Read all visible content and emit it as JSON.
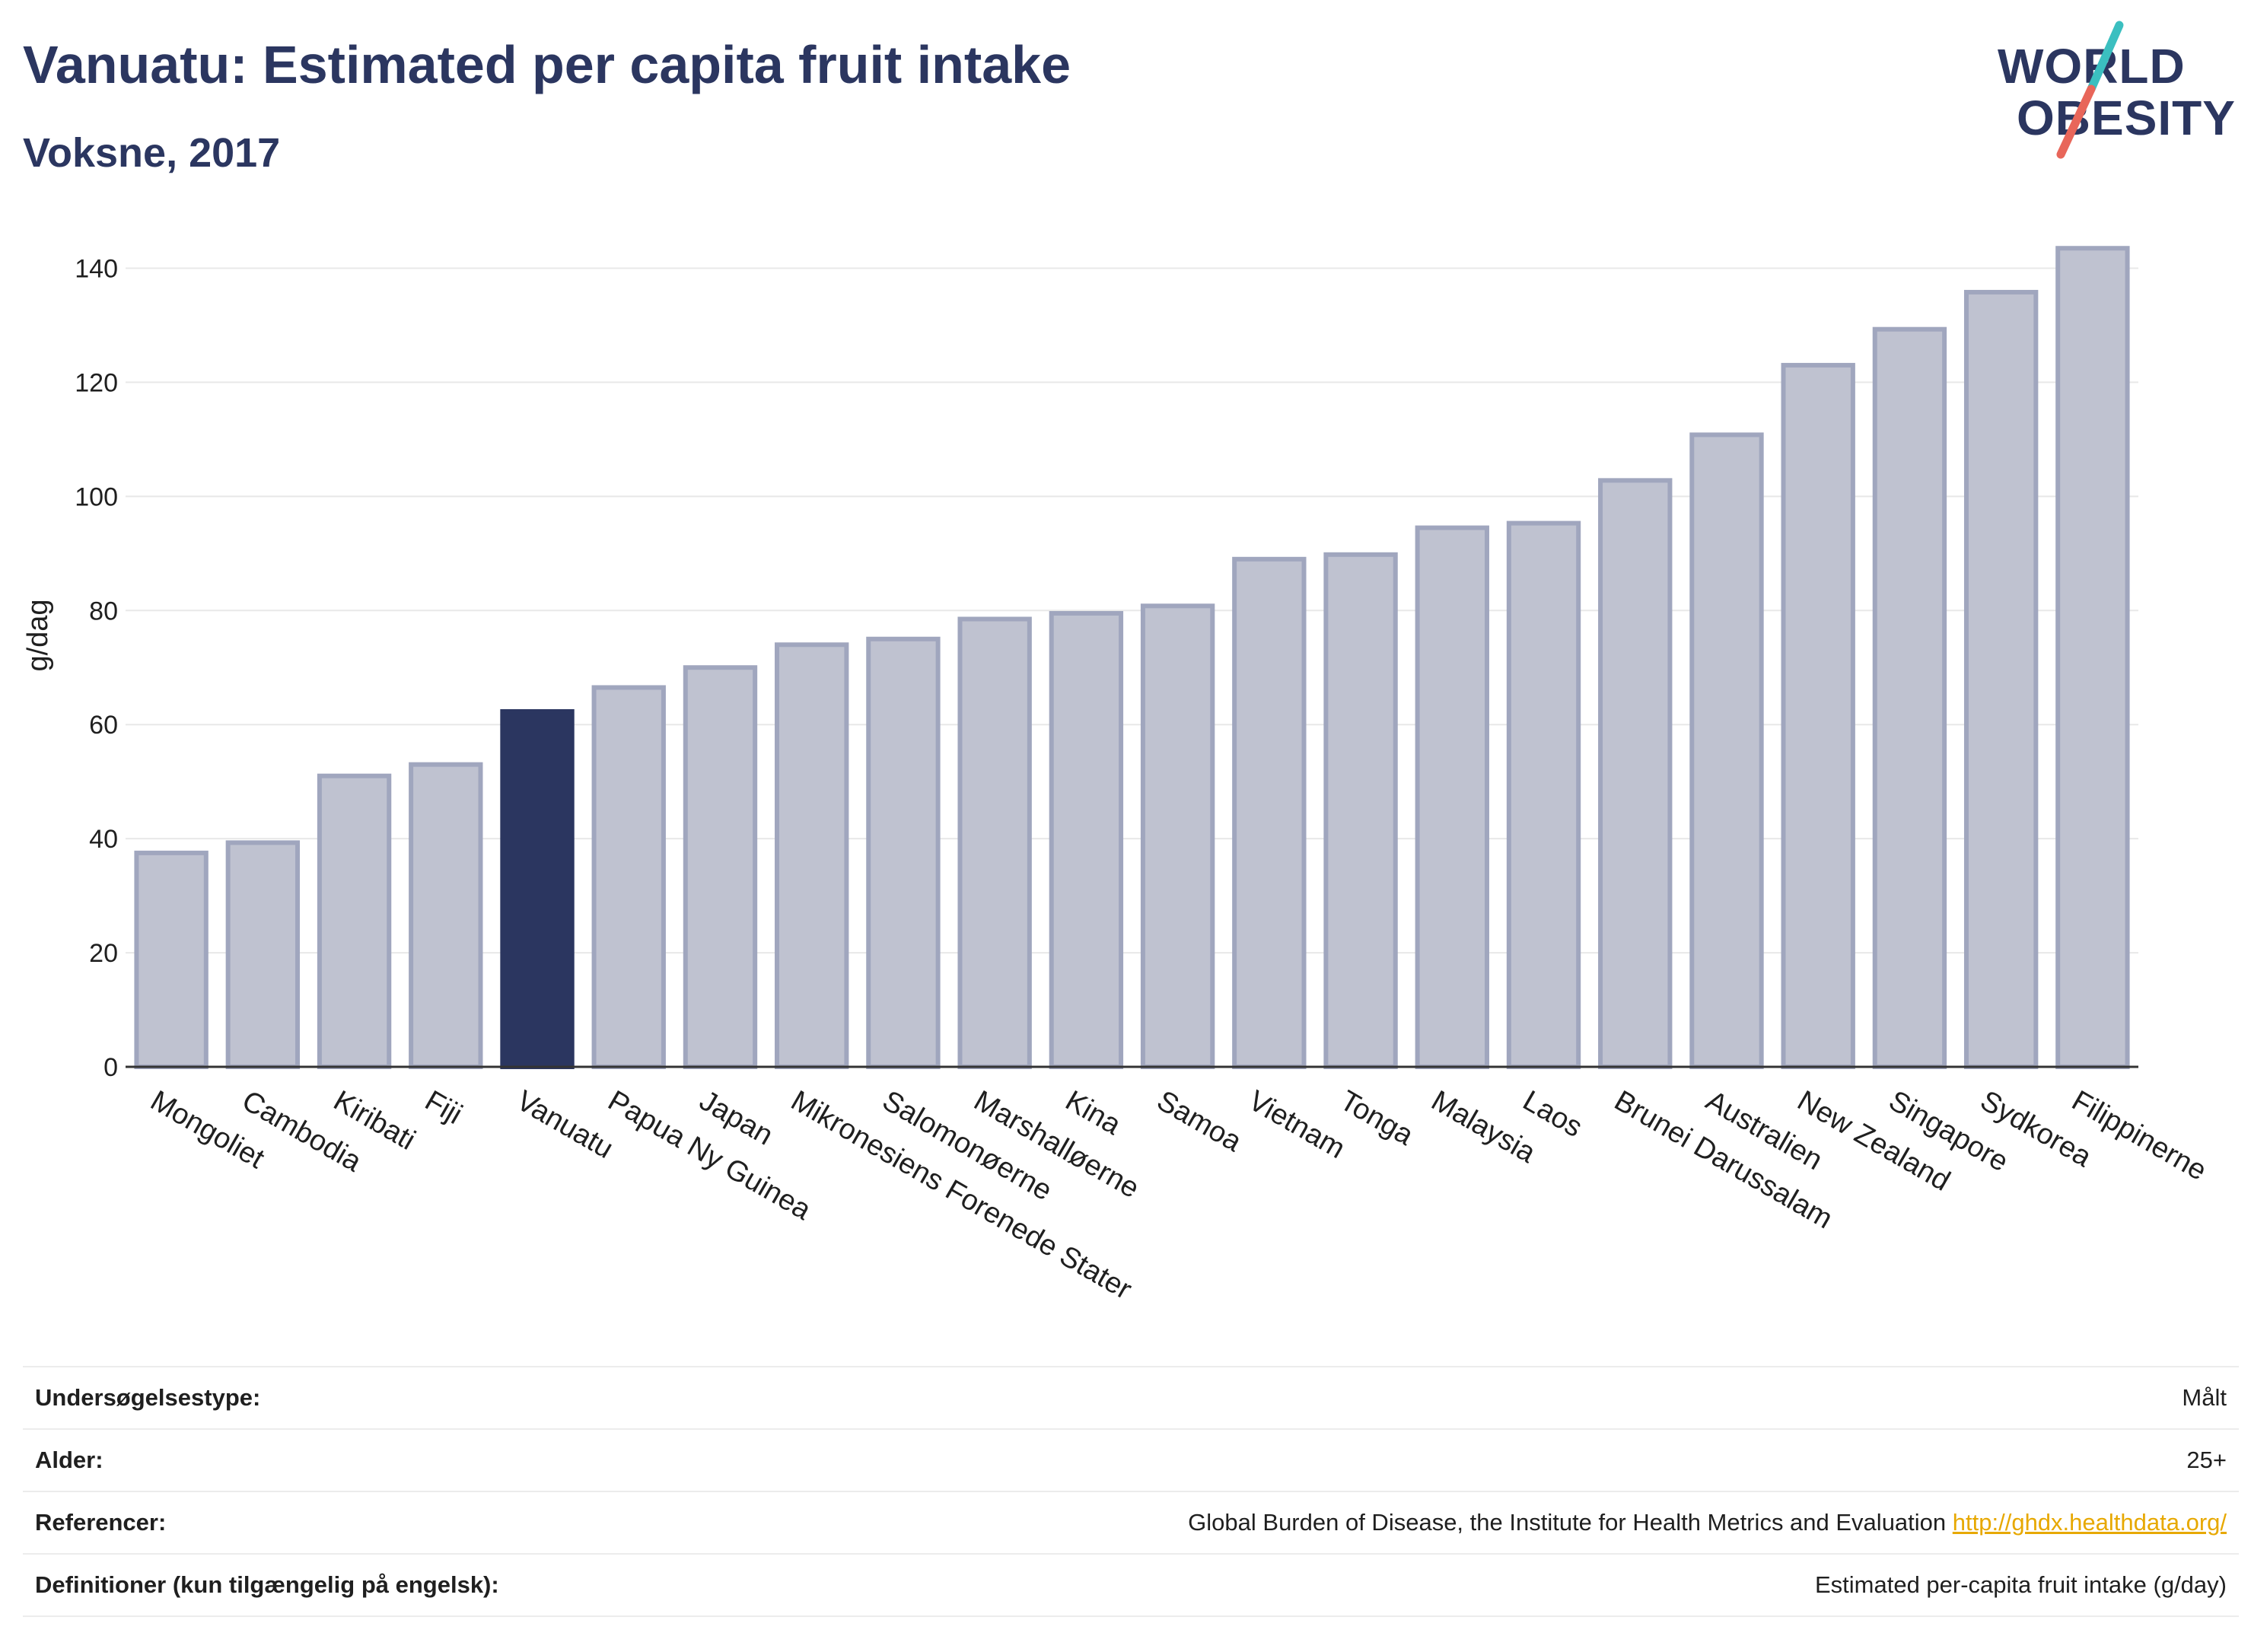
{
  "title": "Vanuatu: Estimated per capita fruit intake",
  "subtitle": "Voksne, 2017",
  "logo": {
    "line1": "WORLD",
    "line2": "OBESITY"
  },
  "colors": {
    "highlight": "#2b3660",
    "bar_fill": "#bfc2d0",
    "bar_stroke": "#a0a6be",
    "accent_teal": "#3bbfc0",
    "accent_red": "#e8665a",
    "link": "#e7a800"
  },
  "chart_data": {
    "type": "bar",
    "title": "Vanuatu: Estimated per capita fruit intake",
    "subtitle": "Voksne, 2017",
    "xlabel": "",
    "ylabel": "g/dag",
    "ylim": [
      0,
      147
    ],
    "yticks": [
      0,
      20,
      40,
      60,
      80,
      100,
      120,
      140
    ],
    "grid": true,
    "highlight": "Vanuatu",
    "categories": [
      "Mongoliet",
      "Cambodia",
      "Kiribati",
      "Fiji",
      "Vanuatu",
      "Papua Ny Guinea",
      "Japan",
      "Mikronesiens Forenede Stater",
      "Salomonøerne",
      "Marshalløerne",
      "Kina",
      "Samoa",
      "Vietnam",
      "Tonga",
      "Malaysia",
      "Laos",
      "Brunei Darussalam",
      "Australien",
      "New Zealand",
      "Singapore",
      "Sydkorea",
      "Filippinerne"
    ],
    "values": [
      37.5,
      39.3,
      51,
      53,
      62.3,
      66.5,
      70,
      74,
      75,
      78.5,
      79.5,
      80.8,
      89,
      89.8,
      94.5,
      95.3,
      102.8,
      110.8,
      123,
      129.3,
      135.8,
      143.5
    ]
  },
  "info": [
    {
      "label": "Undersøgelsestype:",
      "value": "Målt"
    },
    {
      "label": "Alder:",
      "value": "25+"
    },
    {
      "label": "Referencer:",
      "value": "Global Burden of Disease, the Institute for Health Metrics and Evaluation",
      "link": "http://ghdx.healthdata.org/"
    },
    {
      "label": "Definitioner (kun tilgængelig på engelsk):",
      "value": "Estimated per-capita fruit intake (g/day)"
    }
  ]
}
